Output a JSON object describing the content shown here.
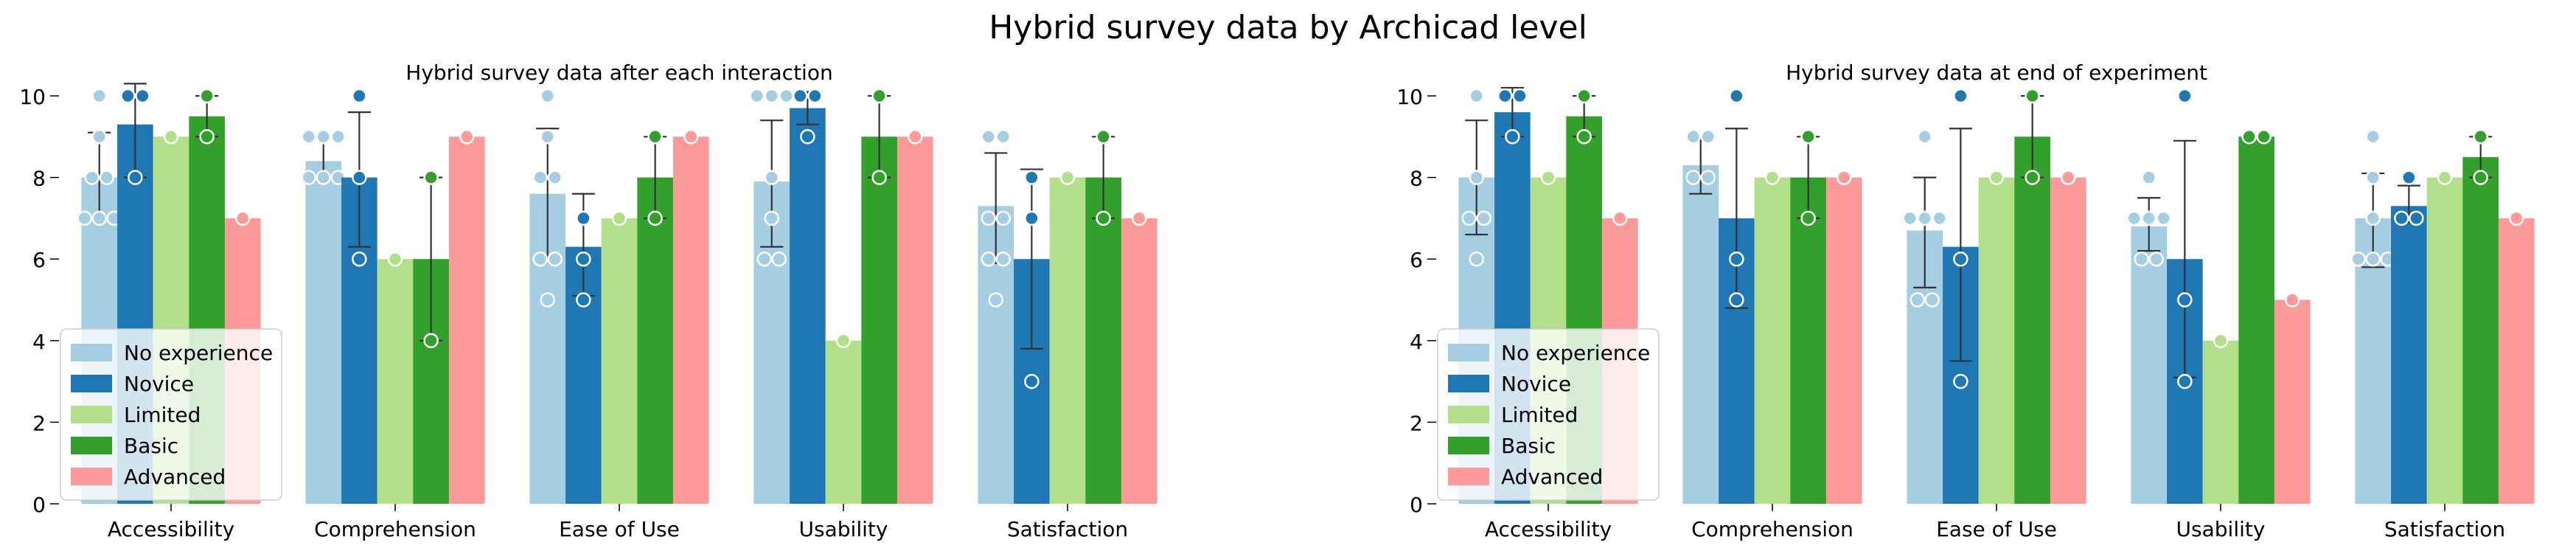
{
  "figure_title": "Hybrid survey data by Archicad level",
  "palette": {
    "No experience": "#a6cee3",
    "Novice": "#1f78b4",
    "Limited": "#b2df8a",
    "Basic": "#33a02c",
    "Advanced": "#fb9a99"
  },
  "chart_data": [
    {
      "type": "bar",
      "title": "Hybrid survey data after each interaction",
      "xlabel": "",
      "ylabel": "",
      "ylim": [
        0,
        10
      ],
      "yticks": [
        0,
        2,
        4,
        6,
        8,
        10
      ],
      "categories": [
        "Accessibility",
        "Comprehension",
        "Ease of Use",
        "Usability",
        "Satisfaction"
      ],
      "legend": {
        "placement": "lower-left",
        "entries": [
          "No experience",
          "Novice",
          "Limited",
          "Basic",
          "Advanced"
        ]
      },
      "series": [
        {
          "name": "No experience",
          "values": [
            8.0,
            8.4,
            7.6,
            7.9,
            7.3
          ],
          "ci": [
            [
              7.0,
              9.1
            ],
            [
              8.0,
              9.0
            ],
            [
              6.0,
              9.2
            ],
            [
              6.3,
              9.4
            ],
            [
              5.9,
              8.6
            ]
          ],
          "points": [
            [
              10,
              9,
              8,
              8,
              7,
              7,
              7
            ],
            [
              9,
              9,
              9,
              8,
              8,
              8
            ],
            [
              10,
              9,
              8,
              8,
              6,
              6,
              5
            ],
            [
              10,
              10,
              10,
              8,
              7,
              6,
              6
            ],
            [
              9,
              9,
              7,
              7,
              6,
              6,
              5
            ]
          ]
        },
        {
          "name": "Novice",
          "values": [
            9.3,
            8.0,
            6.3,
            9.7,
            6.0
          ],
          "ci": [
            [
              8.0,
              10.3
            ],
            [
              6.3,
              9.6
            ],
            [
              5.1,
              7.6
            ],
            [
              9.3,
              10.1
            ],
            [
              3.8,
              8.2
            ]
          ],
          "points": [
            [
              10,
              10,
              8
            ],
            [
              10,
              8,
              6
            ],
            [
              7,
              6,
              5
            ],
            [
              10,
              10,
              9
            ],
            [
              8,
              7,
              3
            ]
          ]
        },
        {
          "name": "Limited",
          "values": [
            9.0,
            6.0,
            7.0,
            4.0,
            8.0
          ],
          "ci": null,
          "points": [
            [
              9
            ],
            [
              6
            ],
            [
              7
            ],
            [
              4
            ],
            [
              8
            ]
          ]
        },
        {
          "name": "Basic",
          "values": [
            9.5,
            6.0,
            8.0,
            9.0,
            8.0
          ],
          "ci": [
            [
              9.0,
              10.0
            ],
            [
              4.0,
              8.0
            ],
            [
              7.0,
              9.0
            ],
            [
              8.0,
              10.0
            ],
            [
              7.0,
              9.0
            ]
          ],
          "points": [
            [
              10,
              9
            ],
            [
              8,
              4
            ],
            [
              9,
              7
            ],
            [
              10,
              8
            ],
            [
              9,
              7
            ]
          ]
        },
        {
          "name": "Advanced",
          "values": [
            7.0,
            9.0,
            9.0,
            9.0,
            7.0
          ],
          "ci": null,
          "points": [
            [
              7
            ],
            [
              9
            ],
            [
              9
            ],
            [
              9
            ],
            [
              7
            ]
          ]
        }
      ]
    },
    {
      "type": "bar",
      "title": "Hybrid survey data at end of experiment",
      "xlabel": "",
      "ylabel": "",
      "ylim": [
        0,
        10
      ],
      "yticks": [
        0,
        2,
        4,
        6,
        8,
        10
      ],
      "categories": [
        "Accessibility",
        "Comprehension",
        "Ease of Use",
        "Usability",
        "Satisfaction"
      ],
      "legend": {
        "placement": "lower-left",
        "entries": [
          "No experience",
          "Novice",
          "Limited",
          "Basic",
          "Advanced"
        ]
      },
      "series": [
        {
          "name": "No experience",
          "values": [
            8.0,
            8.3,
            6.7,
            6.8,
            7.0
          ],
          "ci": [
            [
              6.6,
              9.4
            ],
            [
              7.6,
              9.0
            ],
            [
              5.3,
              8.0
            ],
            [
              6.2,
              7.5
            ],
            [
              5.8,
              8.1
            ]
          ],
          "points": [
            [
              10,
              8,
              7,
              7,
              6
            ],
            [
              9,
              9,
              8,
              8
            ],
            [
              9,
              7,
              7,
              7,
              5,
              5
            ],
            [
              8,
              7,
              7,
              7,
              6,
              6
            ],
            [
              9,
              8,
              7,
              6,
              6,
              6
            ]
          ]
        },
        {
          "name": "Novice",
          "values": [
            9.6,
            7.0,
            6.3,
            6.0,
            7.3
          ],
          "ci": [
            [
              9.0,
              10.2
            ],
            [
              4.8,
              9.2
            ],
            [
              3.5,
              9.2
            ],
            [
              3.1,
              8.9
            ],
            [
              6.9,
              7.8
            ]
          ],
          "points": [
            [
              10,
              10,
              9
            ],
            [
              10,
              6,
              5
            ],
            [
              10,
              6,
              3
            ],
            [
              10,
              5,
              3
            ],
            [
              8,
              7,
              7
            ]
          ]
        },
        {
          "name": "Limited",
          "values": [
            8.0,
            8.0,
            8.0,
            4.0,
            8.0
          ],
          "ci": null,
          "points": [
            [
              8
            ],
            [
              8
            ],
            [
              8
            ],
            [
              4
            ],
            [
              8
            ]
          ]
        },
        {
          "name": "Basic",
          "values": [
            9.5,
            8.0,
            9.0,
            9.0,
            8.5
          ],
          "ci": [
            [
              9.0,
              10.0
            ],
            [
              7.0,
              9.0
            ],
            [
              8.0,
              10.0
            ],
            [
              9.0,
              9.0
            ],
            [
              8.0,
              9.0
            ]
          ],
          "points": [
            [
              10,
              9
            ],
            [
              9,
              7
            ],
            [
              10,
              8
            ],
            [
              9,
              9
            ],
            [
              9,
              8
            ]
          ]
        },
        {
          "name": "Advanced",
          "values": [
            7.0,
            8.0,
            8.0,
            5.0,
            7.0
          ],
          "ci": null,
          "points": [
            [
              7
            ],
            [
              8
            ],
            [
              8
            ],
            [
              5
            ],
            [
              7
            ]
          ]
        }
      ]
    }
  ]
}
